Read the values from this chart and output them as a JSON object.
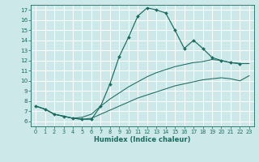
{
  "bg_color": "#cce8e8",
  "grid_color": "#b0d8d8",
  "line_color": "#1a6b60",
  "xlabel": "Humidex (Indice chaleur)",
  "xlim": [
    -0.5,
    23.5
  ],
  "ylim": [
    5.5,
    17.5
  ],
  "xticks": [
    0,
    1,
    2,
    3,
    4,
    5,
    6,
    7,
    8,
    9,
    10,
    11,
    12,
    13,
    14,
    15,
    16,
    17,
    18,
    19,
    20,
    21,
    22,
    23
  ],
  "yticks": [
    6,
    7,
    8,
    9,
    10,
    11,
    12,
    13,
    14,
    15,
    16,
    17
  ],
  "main_x": [
    0,
    1,
    2,
    3,
    4,
    5,
    6,
    7,
    8,
    9,
    10,
    11,
    12,
    13,
    14,
    15,
    16,
    17,
    18,
    19,
    20,
    21,
    22
  ],
  "main_y": [
    7.5,
    7.2,
    6.7,
    6.5,
    6.3,
    6.2,
    6.2,
    7.5,
    9.7,
    12.4,
    14.3,
    16.4,
    17.2,
    17.0,
    16.7,
    15.0,
    13.2,
    14.0,
    13.2,
    12.3,
    12.0,
    11.8,
    11.7
  ],
  "upper_x": [
    0,
    1,
    2,
    3,
    4,
    5,
    6,
    7,
    8,
    9,
    10,
    11,
    12,
    13,
    14,
    15,
    16,
    17,
    18,
    19,
    20,
    21,
    22,
    23
  ],
  "upper_y": [
    7.5,
    7.2,
    6.7,
    6.5,
    6.3,
    6.4,
    6.7,
    7.5,
    8.2,
    8.8,
    9.4,
    9.9,
    10.4,
    10.8,
    11.1,
    11.4,
    11.6,
    11.8,
    11.9,
    12.1,
    12.0,
    11.8,
    11.7,
    11.7
  ],
  "lower_x": [
    0,
    1,
    2,
    3,
    4,
    5,
    6,
    7,
    8,
    9,
    10,
    11,
    12,
    13,
    14,
    15,
    16,
    17,
    18,
    19,
    20,
    21,
    22,
    23
  ],
  "lower_y": [
    7.5,
    7.2,
    6.7,
    6.5,
    6.3,
    6.2,
    6.3,
    6.7,
    7.1,
    7.5,
    7.9,
    8.3,
    8.6,
    8.9,
    9.2,
    9.5,
    9.7,
    9.9,
    10.1,
    10.2,
    10.3,
    10.2,
    10.0,
    10.5
  ]
}
